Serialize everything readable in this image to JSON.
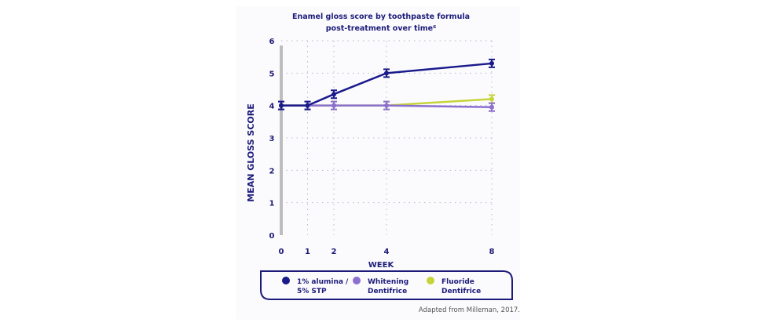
{
  "chart_data": {
    "type": "line",
    "title": "Enamel gloss score by toothpaste formula",
    "subtitle": "post-treatment over time⁶",
    "xlabel": "WEEK",
    "ylabel": "MEAN GLOSS SCORE",
    "x": [
      0,
      1,
      2,
      4,
      8
    ],
    "xticks": [
      "0",
      "1",
      "2",
      "4",
      "8"
    ],
    "yticks": [
      "0",
      "1",
      "2",
      "3",
      "4",
      "5",
      "6"
    ],
    "ylim": [
      0,
      6
    ],
    "grid": true,
    "legend": "bottom",
    "series": [
      {
        "name": "1% alumina / 5% STP",
        "name_lines": [
          "1% alumina /",
          "5% STP"
        ],
        "color": "#1a1a8c",
        "values": [
          4.0,
          4.0,
          4.35,
          5.0,
          5.3
        ]
      },
      {
        "name": "Whitening Dentifrice",
        "name_lines": [
          "Whitening",
          "Dentifrice"
        ],
        "color": "#8c6fd0",
        "values": [
          4.0,
          4.0,
          4.0,
          4.0,
          3.95
        ]
      },
      {
        "name": "Fluoride Dentifrice",
        "name_lines": [
          "Fluoride",
          "Dentifrice"
        ],
        "color": "#c5d43a",
        "values": [
          4.0,
          4.0,
          4.0,
          4.0,
          4.2
        ]
      }
    ],
    "note": "Adapted from Milleman, 2017."
  }
}
